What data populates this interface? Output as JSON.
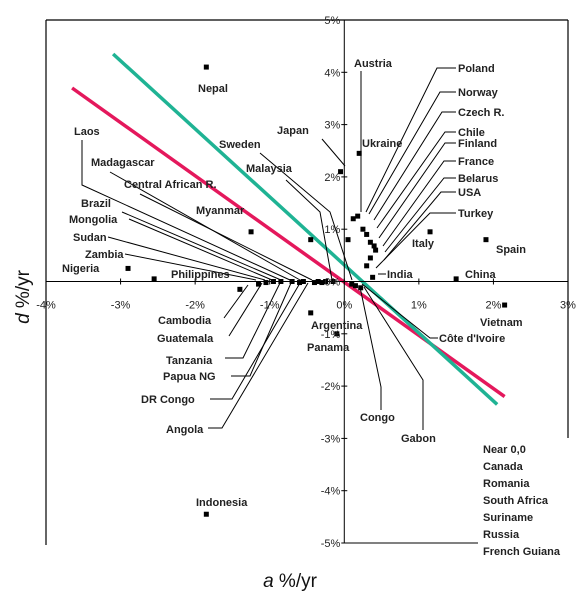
{
  "chart_data": {
    "type": "scatter",
    "xlabel": {
      "var": "a",
      "unit": " %/yr"
    },
    "ylabel": {
      "var": "d",
      "unit": " %/yr"
    },
    "xlim": [
      -4,
      3
    ],
    "ylim": [
      -5,
      5
    ],
    "x_ticks": [
      "-4%",
      "-3%",
      "-2%",
      "-1%",
      "0%",
      "1%",
      "2%",
      "3%"
    ],
    "y_ticks": [
      "-5%",
      "-4%",
      "-3%",
      "-2%",
      "-1%",
      "0%",
      "1%",
      "2%",
      "3%",
      "4%",
      "5%"
    ],
    "grid": false,
    "lines": [
      {
        "color": "#e4185c",
        "x": [
          -3.65,
          2.15
        ],
        "y": [
          3.7,
          -2.2
        ]
      },
      {
        "color": "#1fb394",
        "x": [
          -3.1,
          2.05
        ],
        "y": [
          4.35,
          -2.35
        ]
      }
    ],
    "points": [
      {
        "label": "Nepal",
        "x": -1.85,
        "y": 4.1
      },
      {
        "label": "Indonesia",
        "x": -1.85,
        "y": -4.45
      },
      {
        "label": "Japan",
        "x": -0.05,
        "y": 2.1
      },
      {
        "label": "Austria",
        "x": 0.05,
        "y": 0.8
      },
      {
        "label": "Ukraine",
        "x": 0.2,
        "y": 2.45
      },
      {
        "label": "Poland",
        "x": 0.12,
        "y": 1.2
      },
      {
        "label": "Norway",
        "x": 0.18,
        "y": 1.25
      },
      {
        "label": "Czech R.",
        "x": 0.25,
        "y": 1.0
      },
      {
        "label": "Chile",
        "x": 0.3,
        "y": 0.9
      },
      {
        "label": "Finland",
        "x": 0.35,
        "y": 0.75
      },
      {
        "label": "France",
        "x": 0.4,
        "y": 0.68
      },
      {
        "label": "Belarus",
        "x": 0.42,
        "y": 0.6
      },
      {
        "label": "USA",
        "x": 0.35,
        "y": 0.45
      },
      {
        "label": "Turkey",
        "x": 0.3,
        "y": 0.3
      },
      {
        "label": "Italy",
        "x": 1.15,
        "y": 0.95
      },
      {
        "label": "Spain",
        "x": 1.9,
        "y": 0.8
      },
      {
        "label": "India",
        "x": 0.38,
        "y": 0.08
      },
      {
        "label": "China",
        "x": 1.5,
        "y": 0.05
      },
      {
        "label": "Vietnam",
        "x": 2.15,
        "y": -0.45
      },
      {
        "label": "Côte d'Ivoire",
        "x": 0.1,
        "y": -0.05
      },
      {
        "label": "Argentina",
        "x": -0.45,
        "y": -0.6
      },
      {
        "label": "Panama",
        "x": -0.1,
        "y": -1.0
      },
      {
        "label": "Congo",
        "x": 0.15,
        "y": -0.08
      },
      {
        "label": "Gabon",
        "x": 0.22,
        "y": -0.12
      },
      {
        "label": "Sweden",
        "x": -0.45,
        "y": 0.8
      },
      {
        "label": "Malaysia",
        "x": -0.55,
        "y": 0.0
      },
      {
        "label": "Myanmar",
        "x": -1.25,
        "y": 0.95
      },
      {
        "label": "Central African R.",
        "x": -0.7,
        "y": 0.0
      },
      {
        "label": "Madagascar",
        "x": -0.85,
        "y": 0.0
      },
      {
        "label": "Laos",
        "x": -0.95,
        "y": 0.0
      },
      {
        "label": "Brazil",
        "x": -0.55,
        "y": 0.0
      },
      {
        "label": "Mongolia",
        "x": -0.35,
        "y": 0.0
      },
      {
        "label": "Sudan",
        "x": -0.25,
        "y": 0.0
      },
      {
        "label": "Zambia",
        "x": -0.15,
        "y": 0.0
      },
      {
        "label": "Nigeria",
        "x": -2.9,
        "y": 0.25
      },
      {
        "label": "Philippines",
        "x": -2.55,
        "y": 0.05
      },
      {
        "label": "Cambodia",
        "x": -1.4,
        "y": -0.15
      },
      {
        "label": "Guatemala",
        "x": -1.15,
        "y": -0.05
      },
      {
        "label": "Tanzania",
        "x": -1.05,
        "y": -0.02
      },
      {
        "label": "Papua NG",
        "x": -0.6,
        "y": -0.02
      },
      {
        "label": "DR Congo",
        "x": -0.4,
        "y": -0.02
      },
      {
        "label": "Angola",
        "x": -0.3,
        "y": -0.02
      }
    ],
    "near_origin": {
      "title": "Near 0,0",
      "items": [
        "Canada",
        "Romania",
        "South Africa",
        "Suriname",
        "Russia",
        "French Guiana"
      ]
    }
  }
}
